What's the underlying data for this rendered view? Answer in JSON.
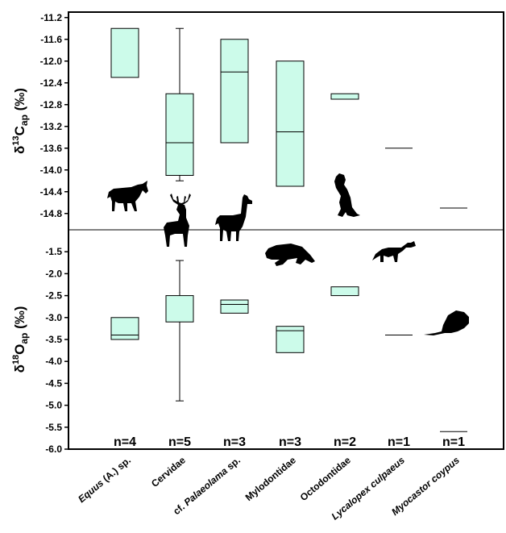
{
  "chart_data": {
    "type": "box",
    "categories": [
      {
        "text": "Equus",
        "italic": true,
        "rest": " (A.) sp."
      },
      {
        "text": "Cervidae",
        "italic": false,
        "rest": ""
      },
      {
        "pre": "cf. ",
        "text": "Palaeolama",
        "italic": true,
        "rest": " sp."
      },
      {
        "text": "Mylodontidae",
        "italic": false,
        "rest": ""
      },
      {
        "text": "Octodontidae",
        "italic": false,
        "rest": ""
      },
      {
        "text": "Lycalopex culpaeus",
        "italic": true,
        "rest": ""
      },
      {
        "text": "Myocastor coypus",
        "italic": true,
        "rest": ""
      }
    ],
    "sample_sizes": [
      "n=4",
      "n=5",
      "n=3",
      "n=3",
      "n=2",
      "n=1",
      "n=1"
    ],
    "box_color": "#ccfbea",
    "panels": [
      {
        "key": "carbon",
        "ylabel": {
          "delta": "δ",
          "sup": "13",
          "main": "C",
          "sub": "ap",
          "unit": " (‰)"
        },
        "ylim": [
          -15.1,
          -11.1
        ],
        "ticks": [
          "-11.2",
          "-11.6",
          "-12.0",
          "-12.4",
          "-12.8",
          "-13.2",
          "-13.6",
          "-14.0",
          "-14.4",
          "-14.8"
        ],
        "series": [
          {
            "q1": -12.3,
            "median": null,
            "q3": -11.4,
            "whisker_low": null,
            "whisker_high": null
          },
          {
            "q1": -14.1,
            "median": -13.5,
            "q3": -12.6,
            "whisker_low": -14.2,
            "whisker_high": -11.4
          },
          {
            "q1": -13.5,
            "median": -12.2,
            "q3": -11.6,
            "whisker_low": null,
            "whisker_high": null
          },
          {
            "q1": -14.3,
            "median": -13.3,
            "q3": -12.0,
            "whisker_low": null,
            "whisker_high": null
          },
          {
            "q1": -12.7,
            "median": null,
            "q3": -12.6,
            "whisker_low": null,
            "whisker_high": null
          },
          {
            "q1": -13.6,
            "median": -13.6,
            "q3": -13.6,
            "whisker_low": null,
            "whisker_high": null
          },
          {
            "q1": -14.7,
            "median": -14.7,
            "q3": -14.7,
            "whisker_low": null,
            "whisker_high": null
          }
        ]
      },
      {
        "key": "oxygen",
        "ylabel": {
          "delta": "δ",
          "sup": "18",
          "main": "O",
          "sub": "ap",
          "unit": " (‰)"
        },
        "ylim": [
          -6.0,
          -1.0
        ],
        "ticks": [
          "-1.5",
          "-2.0",
          "-2.5",
          "-3.0",
          "-3.5",
          "-4.0",
          "-4.5",
          "-5.0",
          "-5.5",
          "-6.0"
        ],
        "series": [
          {
            "q1": -3.5,
            "median": -3.4,
            "q3": -3.0,
            "whisker_low": null,
            "whisker_high": null
          },
          {
            "q1": -3.1,
            "median": null,
            "q3": -2.5,
            "whisker_low": -4.9,
            "whisker_high": -1.7
          },
          {
            "q1": -2.9,
            "median": -2.7,
            "q3": -2.6,
            "whisker_low": null,
            "whisker_high": null
          },
          {
            "q1": -3.8,
            "median": -3.3,
            "q3": -3.2,
            "whisker_low": null,
            "whisker_high": null
          },
          {
            "q1": -2.5,
            "median": null,
            "q3": -2.3,
            "whisker_low": null,
            "whisker_high": null
          },
          {
            "q1": -3.4,
            "median": -3.4,
            "q3": -3.4,
            "whisker_low": null,
            "whisker_high": null
          },
          {
            "q1": -5.6,
            "median": -5.6,
            "q3": -5.6,
            "whisker_low": null,
            "whisker_high": null
          }
        ]
      }
    ],
    "grid": false,
    "legend": "none",
    "silhouettes": [
      "horse-icon",
      "deer-icon",
      "llama-icon",
      "ground-sloth-icon",
      "rodent-icon",
      "fox-icon",
      "coypu-icon"
    ]
  }
}
